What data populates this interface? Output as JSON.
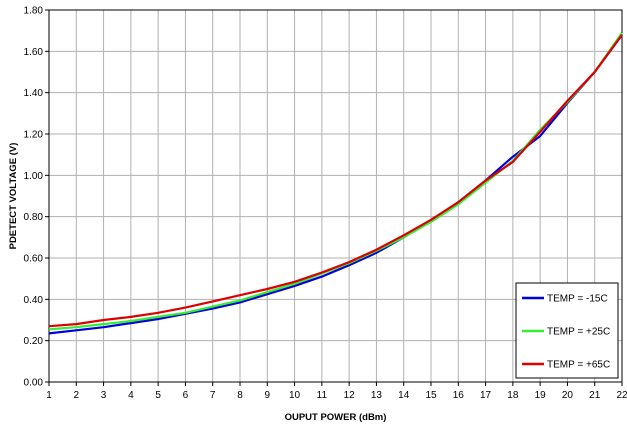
{
  "chart_data": {
    "type": "line",
    "title": "",
    "xlabel": "OUPUT POWER (dBm)",
    "ylabel": "PDETECT VOLTAGE (V)",
    "xlim": [
      1,
      22
    ],
    "ylim": [
      0,
      1.8
    ],
    "x_ticks": [
      1,
      2,
      3,
      4,
      5,
      6,
      7,
      8,
      9,
      10,
      11,
      12,
      13,
      14,
      15,
      16,
      17,
      18,
      19,
      20,
      21,
      22
    ],
    "x_tick_labels": [
      "1",
      "2",
      "3",
      "4",
      "5",
      "6",
      "7",
      "8",
      "9",
      "10",
      "11",
      "12",
      "13",
      "14",
      "15",
      "16",
      "17",
      "18",
      "19",
      "20",
      "21",
      "22"
    ],
    "y_ticks": [
      0,
      0.2,
      0.4,
      0.6,
      0.8,
      1.0,
      1.2,
      1.4,
      1.6,
      1.8
    ],
    "y_tick_labels": [
      "0.00",
      "0.20",
      "0.40",
      "0.60",
      "0.80",
      "1.00",
      "1.20",
      "1.40",
      "1.60",
      "1.80"
    ],
    "grid": true,
    "legend_position": "bottom-right",
    "x": [
      1,
      2,
      3,
      4,
      5,
      6,
      7,
      8,
      9,
      10,
      11,
      12,
      13,
      14,
      15,
      16,
      17,
      18,
      19,
      20,
      21,
      22
    ],
    "series": [
      {
        "name": "TEMP = -15C",
        "color": "#0000dd",
        "values": [
          0.235,
          0.25,
          0.265,
          0.285,
          0.305,
          0.33,
          0.355,
          0.385,
          0.425,
          0.465,
          0.51,
          0.565,
          0.625,
          0.7,
          0.78,
          0.87,
          0.975,
          1.09,
          1.19,
          1.35,
          1.5,
          1.68
        ]
      },
      {
        "name": "TEMP = +25C",
        "color": "#33ee33",
        "values": [
          0.255,
          0.265,
          0.28,
          0.295,
          0.315,
          0.335,
          0.365,
          0.395,
          0.435,
          0.475,
          0.525,
          0.575,
          0.635,
          0.7,
          0.775,
          0.86,
          0.965,
          1.07,
          1.22,
          1.355,
          1.5,
          1.69
        ]
      },
      {
        "name": "TEMP = +65C",
        "color": "#dd0000",
        "values": [
          0.27,
          0.28,
          0.3,
          0.315,
          0.335,
          0.36,
          0.39,
          0.42,
          0.45,
          0.485,
          0.53,
          0.58,
          0.64,
          0.71,
          0.785,
          0.87,
          0.975,
          1.065,
          1.21,
          1.36,
          1.5,
          1.68
        ]
      }
    ]
  }
}
